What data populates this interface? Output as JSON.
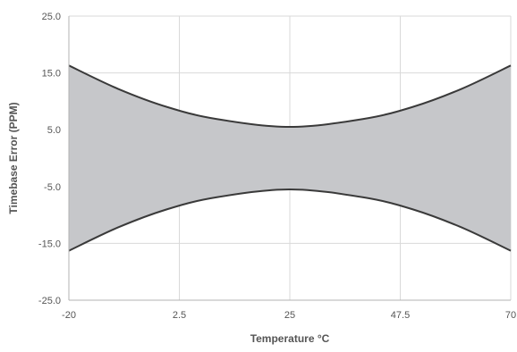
{
  "chart_data": {
    "type": "area",
    "title": "",
    "xlabel": "Temperature °C",
    "ylabel": "Timebase Error (PPM)",
    "xlim": [
      -20,
      70
    ],
    "ylim": [
      -25,
      25
    ],
    "x_ticks": [
      -20,
      2.5,
      25,
      47.5,
      70
    ],
    "x_tick_labels": [
      "-20",
      "2.5",
      "25",
      "47.5",
      "70"
    ],
    "y_ticks": [
      25,
      15,
      5,
      -5,
      -15,
      -25
    ],
    "y_tick_labels": [
      "25.0",
      "15.0",
      "5.0",
      "-5.0",
      "-15.0",
      "-25.0"
    ],
    "grid": true,
    "series": [
      {
        "x": [
          -20,
          -10,
          0,
          10,
          25,
          40,
          50,
          60,
          70
        ],
        "upper": [
          16.3,
          12.2,
          9.0,
          6.9,
          5.5,
          6.9,
          9.0,
          12.2,
          16.3
        ],
        "lower": [
          -16.3,
          -12.2,
          -9.0,
          -6.9,
          -5.5,
          -6.9,
          -9.0,
          -12.2,
          -16.3
        ]
      }
    ],
    "colors": {
      "fill": "#c6c7ca",
      "line": "#3a3a3a",
      "grid": "#d9d9d9",
      "axis": "#b3b3b3",
      "text": "#555555"
    }
  }
}
